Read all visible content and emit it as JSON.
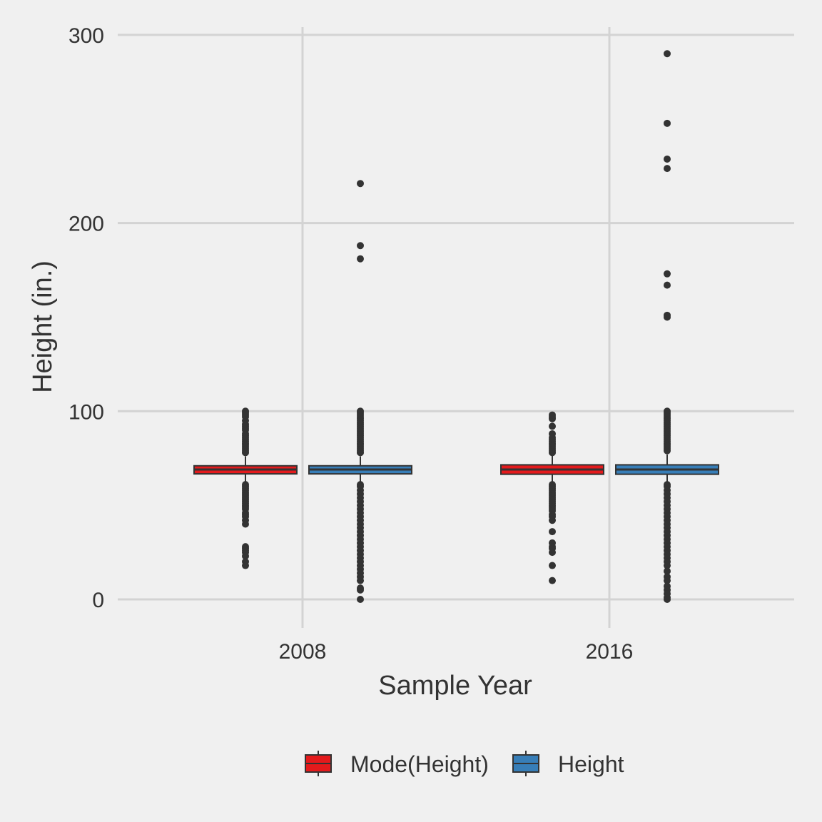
{
  "chart_data": {
    "type": "boxplot",
    "title": "",
    "xlabel": "Sample Year",
    "ylabel": "Height (in.)",
    "ylim": [
      -10,
      305
    ],
    "yticks": [
      0,
      100,
      200,
      300
    ],
    "categories": [
      "2008",
      "2016"
    ],
    "grid": true,
    "legend": {
      "position": "bottom",
      "entries": [
        {
          "name": "Mode(Height)",
          "color": "#e41a1c"
        },
        {
          "name": "Height",
          "color": "#377eb8"
        }
      ]
    },
    "series": [
      {
        "name": "Mode(Height)",
        "color": "#e41a1c",
        "boxes": [
          {
            "category": "2008",
            "q1": 66.7,
            "median": 69,
            "q3": 71,
            "whisker_low": 62.5,
            "whisker_high": 76,
            "outliers": [
              78,
              79,
              80,
              81,
              82,
              83,
              84,
              85,
              86,
              87,
              88,
              90,
              91,
              92,
              93,
              95,
              97,
              98,
              99,
              100,
              61,
              60,
              59,
              58,
              57,
              56,
              55,
              54,
              53,
              52,
              51,
              50,
              49,
              48,
              46,
              45,
              44,
              42,
              40,
              28,
              27,
              26,
              25,
              23,
              20,
              18
            ]
          },
          {
            "category": "2016",
            "q1": 66.5,
            "median": 69,
            "q3": 71.5,
            "whisker_low": 62.5,
            "whisker_high": 76.5,
            "outliers": [
              78,
              79,
              80,
              81,
              82,
              83,
              84,
              85,
              86,
              88,
              92,
              96,
              97,
              98,
              61,
              60,
              59,
              58,
              57,
              56,
              55,
              54,
              53,
              52,
              51,
              50,
              49,
              48,
              47,
              45,
              44,
              42,
              36,
              30,
              28,
              27,
              25,
              18,
              10
            ]
          }
        ]
      },
      {
        "name": "Height",
        "color": "#377eb8",
        "boxes": [
          {
            "category": "2008",
            "q1": 66.7,
            "median": 69,
            "q3": 71,
            "whisker_low": 62.5,
            "whisker_high": 76,
            "outliers": [
              78,
              79,
              80,
              81,
              82,
              83,
              84,
              85,
              86,
              87,
              88,
              89,
              90,
              91,
              92,
              93,
              94,
              95,
              96,
              97,
              98,
              99,
              100,
              181,
              188,
              221,
              61,
              60,
              58,
              56,
              54,
              52,
              50,
              48,
              46,
              44,
              42,
              40,
              38,
              36,
              34,
              32,
              30,
              28,
              26,
              24,
              22,
              20,
              18,
              16,
              14,
              12,
              10,
              6,
              5,
              0
            ]
          },
          {
            "category": "2016",
            "q1": 66.5,
            "median": 69,
            "q3": 71.5,
            "whisker_low": 62.5,
            "whisker_high": 77,
            "outliers": [
              79,
              80,
              81,
              82,
              83,
              84,
              85,
              86,
              87,
              88,
              89,
              90,
              91,
              92,
              93,
              94,
              95,
              96,
              97,
              98,
              99,
              100,
              150,
              151,
              167,
              173,
              229,
              234,
              253,
              290,
              61,
              60,
              58,
              56,
              54,
              52,
              50,
              48,
              46,
              44,
              42,
              40,
              38,
              36,
              34,
              32,
              30,
              28,
              26,
              24,
              22,
              20,
              18,
              15,
              12,
              10,
              7,
              5,
              3,
              1,
              0
            ]
          }
        ]
      }
    ]
  }
}
